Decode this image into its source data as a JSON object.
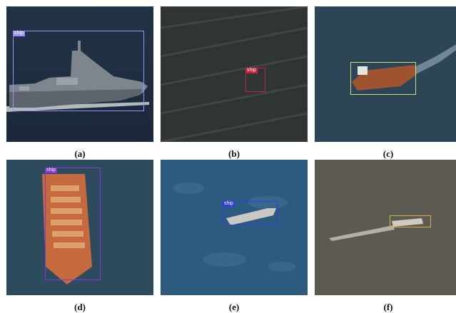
{
  "panels": [
    {
      "caption": "(a)",
      "label": "ship",
      "box_color": "#9a8ff5"
    },
    {
      "caption": "(b)",
      "label": "ship",
      "box_color": "#c8203e"
    },
    {
      "caption": "(c)",
      "label": "",
      "box_color": "#c9e07a"
    },
    {
      "caption": "(d)",
      "label": "ship",
      "box_color": "#8a34d8"
    },
    {
      "caption": "(e)",
      "label": "ship",
      "box_color": "#2e3fe0"
    },
    {
      "caption": "(f)",
      "label": "",
      "box_color": "#d4b341"
    }
  ]
}
